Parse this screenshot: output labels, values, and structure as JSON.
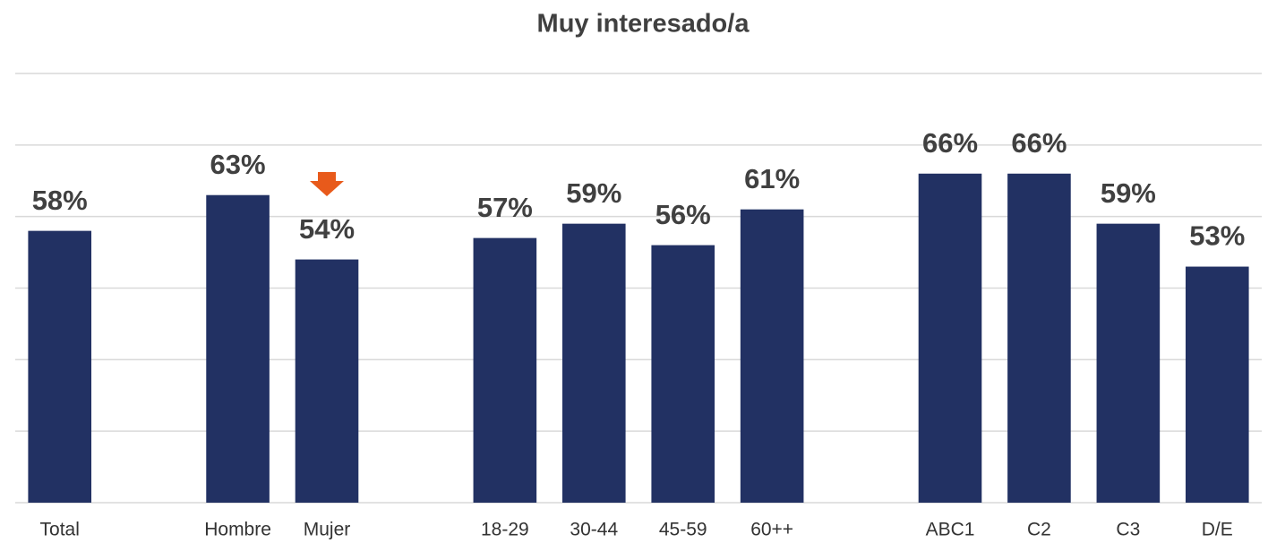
{
  "chart_data": {
    "type": "bar",
    "title": "Muy interesado/a",
    "categories": [
      "Total",
      null,
      "Hombre",
      "Mujer",
      null,
      "18-29",
      "30-44",
      "45-59",
      "60++",
      null,
      "ABC1",
      "C2",
      "C3",
      "D/E"
    ],
    "values": [
      58,
      null,
      63,
      54,
      null,
      57,
      59,
      56,
      61,
      null,
      66,
      66,
      59,
      53
    ],
    "value_labels": [
      "58%",
      null,
      "63%",
      "54%",
      null,
      "57%",
      "59%",
      "56%",
      "61%",
      null,
      "66%",
      "66%",
      "59%",
      "53%"
    ],
    "color": "#223163",
    "ylim": [
      20,
      80
    ],
    "yticks": [
      20,
      30,
      40,
      50,
      60,
      70,
      80
    ],
    "grid": true
  }
}
